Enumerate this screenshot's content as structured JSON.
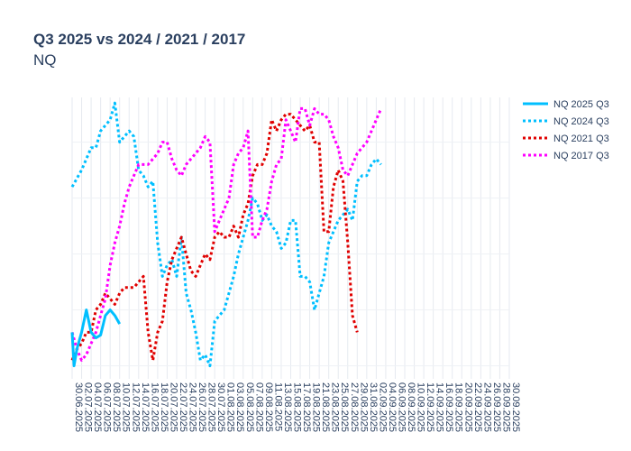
{
  "chart_data": {
    "type": "line",
    "title": "Q3 2025 vs 2024 / 2021 / 2017",
    "subtitle": "NQ",
    "xlabel": "",
    "ylabel": "",
    "grid": true,
    "legend_position": "top-right",
    "x_ticks": [
      "30.06.2025",
      "02.07.2025",
      "04.07.2025",
      "06.07.2025",
      "08.07.2025",
      "10.07.2025",
      "12.07.2025",
      "14.07.2025",
      "16.07.2025",
      "18.07.2025",
      "20.07.2025",
      "22.07.2025",
      "24.07.2025",
      "26.07.2025",
      "28.07.2025",
      "30.07.2025",
      "01.08.2025",
      "03.08.2025",
      "05.08.2025",
      "07.08.2025",
      "09.08.2025",
      "11.08.2025",
      "13.08.2025",
      "15.08.2025",
      "17.08.2025",
      "19.08.2025",
      "21.08.2025",
      "23.08.2025",
      "25.08.2025",
      "27.08.2025",
      "29.08.2025",
      "31.08.2025",
      "02.09.2025",
      "04.09.2025",
      "06.09.2025",
      "08.09.2025",
      "10.09.2025",
      "12.09.2025",
      "14.09.2025",
      "16.09.2025",
      "18.09.2025",
      "20.09.2025",
      "22.09.2025",
      "24.09.2025",
      "26.09.2025",
      "28.09.2025",
      "30.09.2025"
    ],
    "x_range_days": [
      0,
      92
    ],
    "y_range": [
      -0.2,
      4.8
    ],
    "series": [
      {
        "name": "NQ 2025 Q3",
        "color": "#00bfff",
        "style": "solid",
        "points": [
          [
            0,
            0.6
          ],
          [
            0.4,
            0
          ],
          [
            1,
            0.3
          ],
          [
            2,
            0.6
          ],
          [
            3,
            1
          ],
          [
            4,
            0.6
          ],
          [
            5,
            0.5
          ],
          [
            6,
            0.55
          ],
          [
            7,
            0.9
          ],
          [
            8,
            1
          ],
          [
            9,
            0.9
          ],
          [
            10,
            0.75
          ]
        ]
      },
      {
        "name": "NQ 2024 Q3",
        "color": "#00bfff",
        "style": "dot",
        "points": [
          [
            0,
            3.2
          ],
          [
            2,
            3.5
          ],
          [
            4,
            3.9
          ],
          [
            5,
            3.9
          ],
          [
            6,
            4.2
          ],
          [
            7,
            4.3
          ],
          [
            8,
            4.4
          ],
          [
            9,
            4.7
          ],
          [
            10,
            4.0
          ],
          [
            11,
            4.1
          ],
          [
            12,
            4.2
          ],
          [
            13,
            4.1
          ],
          [
            14,
            3.5
          ],
          [
            15,
            3.4
          ],
          [
            16,
            3.2
          ],
          [
            17,
            3.3
          ],
          [
            18,
            2.2
          ],
          [
            19,
            1.6
          ],
          [
            20,
            1.8
          ],
          [
            21,
            1.9
          ],
          [
            22,
            1.6
          ],
          [
            23,
            2.3
          ],
          [
            24,
            1.3
          ],
          [
            25,
            1.0
          ],
          [
            26,
            0.6
          ],
          [
            27,
            0.1
          ],
          [
            28,
            0.2
          ],
          [
            29,
            0.0
          ],
          [
            30,
            0.8
          ],
          [
            31,
            0.9
          ],
          [
            32,
            1.0
          ],
          [
            33,
            1.3
          ],
          [
            34,
            1.6
          ],
          [
            35,
            2.0
          ],
          [
            36,
            2.3
          ],
          [
            37,
            2.6
          ],
          [
            38,
            3.0
          ],
          [
            39,
            2.9
          ],
          [
            40,
            2.6
          ],
          [
            41,
            2.7
          ],
          [
            42,
            2.5
          ],
          [
            43,
            2.4
          ],
          [
            44,
            2.1
          ],
          [
            45,
            2.2
          ],
          [
            46,
            2.6
          ],
          [
            47,
            2.6
          ],
          [
            48,
            1.6
          ],
          [
            49,
            1.6
          ],
          [
            50,
            1.5
          ],
          [
            51,
            1.0
          ],
          [
            52,
            1.3
          ],
          [
            53,
            1.6
          ],
          [
            54,
            2.2
          ],
          [
            55,
            2.4
          ],
          [
            56,
            2.6
          ],
          [
            57,
            2.7
          ],
          [
            58,
            2.8
          ],
          [
            59,
            2.6
          ],
          [
            60,
            3.3
          ],
          [
            61,
            3.4
          ],
          [
            62,
            3.4
          ],
          [
            63,
            3.6
          ],
          [
            64,
            3.7
          ],
          [
            65,
            3.6
          ]
        ]
      },
      {
        "name": "NQ 2021 Q3",
        "color": "#e00000",
        "style": "dot",
        "points": [
          [
            0,
            0.1
          ],
          [
            1,
            0.3
          ],
          [
            2,
            0.4
          ],
          [
            3,
            0.6
          ],
          [
            4,
            0.6
          ],
          [
            5,
            1.0
          ],
          [
            6,
            1.1
          ],
          [
            7,
            1.3
          ],
          [
            8,
            1.2
          ],
          [
            9,
            1.1
          ],
          [
            10,
            1.3
          ],
          [
            11,
            1.4
          ],
          [
            12,
            1.4
          ],
          [
            13,
            1.4
          ],
          [
            14,
            1.5
          ],
          [
            15,
            1.6
          ],
          [
            16,
            0.6
          ],
          [
            17,
            0.1
          ],
          [
            18,
            0.6
          ],
          [
            19,
            0.8
          ],
          [
            20,
            1.5
          ],
          [
            21,
            1.9
          ],
          [
            22,
            2.1
          ],
          [
            23,
            2.3
          ],
          [
            24,
            2.0
          ],
          [
            25,
            1.7
          ],
          [
            26,
            1.6
          ],
          [
            27,
            1.8
          ],
          [
            28,
            2.0
          ],
          [
            29,
            1.9
          ],
          [
            30,
            2.3
          ],
          [
            31,
            2.4
          ],
          [
            32,
            2.3
          ],
          [
            33,
            2.3
          ],
          [
            34,
            2.5
          ],
          [
            35,
            2.3
          ],
          [
            36,
            2.7
          ],
          [
            37,
            2.9
          ],
          [
            38,
            3.4
          ],
          [
            39,
            3.6
          ],
          [
            40,
            3.6
          ],
          [
            41,
            3.8
          ],
          [
            42,
            4.4
          ],
          [
            43,
            4.2
          ],
          [
            44,
            4.4
          ],
          [
            45,
            4.5
          ],
          [
            46,
            4.5
          ],
          [
            47,
            4.4
          ],
          [
            48,
            4.3
          ],
          [
            49,
            4.2
          ],
          [
            50,
            4.3
          ],
          [
            51,
            4.0
          ],
          [
            52,
            4.0
          ],
          [
            53,
            2.4
          ],
          [
            54,
            2.4
          ],
          [
            55,
            3.2
          ],
          [
            56,
            3.5
          ],
          [
            57,
            3.3
          ],
          [
            58,
            2.2
          ],
          [
            59,
            0.9
          ],
          [
            60,
            0.6
          ]
        ]
      },
      {
        "name": "NQ 2017 Q3",
        "color": "#ff00ff",
        "style": "dot",
        "points": [
          [
            0,
            0.6
          ],
          [
            1,
            0.3
          ],
          [
            2,
            0.1
          ],
          [
            3,
            0.2
          ],
          [
            4,
            0.4
          ],
          [
            5,
            0.6
          ],
          [
            6,
            0.9
          ],
          [
            7,
            1.2
          ],
          [
            8,
            1.8
          ],
          [
            9,
            2.2
          ],
          [
            10,
            2.5
          ],
          [
            11,
            2.9
          ],
          [
            12,
            3.2
          ],
          [
            13,
            3.4
          ],
          [
            14,
            3.6
          ],
          [
            15,
            3.6
          ],
          [
            16,
            3.6
          ],
          [
            17,
            3.7
          ],
          [
            18,
            3.8
          ],
          [
            19,
            4.0
          ],
          [
            20,
            4.0
          ],
          [
            21,
            3.7
          ],
          [
            22,
            3.5
          ],
          [
            23,
            3.4
          ],
          [
            24,
            3.6
          ],
          [
            25,
            3.7
          ],
          [
            26,
            3.8
          ],
          [
            27,
            3.9
          ],
          [
            28,
            4.1
          ],
          [
            29,
            4.0
          ],
          [
            30,
            2.4
          ],
          [
            31,
            2.6
          ],
          [
            32,
            2.8
          ],
          [
            33,
            3.0
          ],
          [
            34,
            3.6
          ],
          [
            35,
            3.8
          ],
          [
            36,
            3.9
          ],
          [
            37,
            4.2
          ],
          [
            38,
            2.3
          ],
          [
            39,
            2.3
          ],
          [
            40,
            2.6
          ],
          [
            41,
            2.8
          ],
          [
            42,
            3.3
          ],
          [
            43,
            3.6
          ],
          [
            44,
            3.7
          ],
          [
            45,
            4.4
          ],
          [
            46,
            4.2
          ],
          [
            47,
            4.0
          ],
          [
            48,
            4.6
          ],
          [
            49,
            4.6
          ],
          [
            50,
            4.3
          ],
          [
            51,
            4.6
          ],
          [
            52,
            4.5
          ],
          [
            53,
            4.5
          ],
          [
            54,
            4.4
          ],
          [
            55,
            4.1
          ],
          [
            56,
            3.9
          ],
          [
            57,
            3.5
          ],
          [
            58,
            3.4
          ],
          [
            59,
            3.6
          ],
          [
            60,
            3.8
          ],
          [
            61,
            3.9
          ],
          [
            62,
            4.0
          ],
          [
            63,
            4.2
          ],
          [
            64,
            4.4
          ],
          [
            65,
            4.6
          ]
        ]
      }
    ]
  }
}
